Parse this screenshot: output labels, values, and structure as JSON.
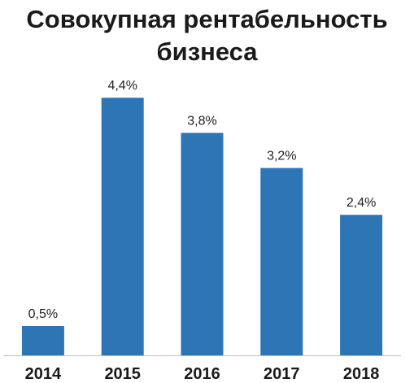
{
  "chart_data": {
    "type": "bar",
    "title": "Совокупная рентабельность бизнеса",
    "categories": [
      "2014",
      "2015",
      "2016",
      "2017",
      "2018"
    ],
    "values": [
      0.5,
      4.4,
      3.8,
      3.2,
      2.4
    ],
    "value_labels": [
      "0,5%",
      "4,4%",
      "3,8%",
      "3,2%",
      "2,4%"
    ],
    "xlabel": "",
    "ylabel": "",
    "ylim": [
      0,
      4.4
    ],
    "grid": false,
    "bar_color": "#2e75b6"
  }
}
